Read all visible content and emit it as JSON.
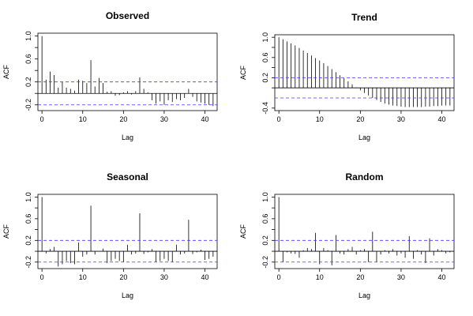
{
  "chart_data": [
    {
      "type": "bar",
      "title": "Observed",
      "xlabel": "Lag",
      "ylabel": "ACF",
      "xlim": [
        -1,
        43
      ],
      "ylim": [
        -0.3,
        1.05
      ],
      "xticks": [
        0,
        10,
        20,
        30,
        40
      ],
      "yticks": [
        -0.2,
        0.2,
        0.6,
        1.0
      ],
      "yticks_minor": [
        0.0,
        0.4,
        0.8
      ],
      "conf_limit": 0.2,
      "lags": [
        0,
        1,
        2,
        3,
        4,
        5,
        6,
        7,
        8,
        9,
        10,
        11,
        12,
        13,
        14,
        15,
        16,
        17,
        18,
        19,
        20,
        21,
        22,
        23,
        24,
        25,
        26,
        27,
        28,
        29,
        30,
        31,
        32,
        33,
        34,
        35,
        36,
        37,
        38,
        39,
        40,
        41,
        42
      ],
      "values": [
        1.0,
        0.24,
        0.38,
        0.32,
        0.1,
        0.2,
        0.1,
        0.08,
        0.05,
        0.24,
        0.22,
        0.18,
        0.58,
        0.12,
        0.27,
        0.18,
        0.03,
        0.04,
        -0.04,
        -0.03,
        0.02,
        0.04,
        -0.02,
        0.04,
        0.28,
        0.08,
        0.02,
        -0.12,
        -0.18,
        -0.14,
        -0.2,
        -0.12,
        -0.15,
        -0.1,
        -0.12,
        -0.08,
        0.08,
        -0.06,
        -0.14,
        -0.16,
        -0.18,
        -0.2,
        -0.22
      ]
    },
    {
      "type": "bar",
      "title": "Trend",
      "xlabel": "Lag",
      "ylabel": "ACF",
      "xlim": [
        -1,
        43
      ],
      "ylim": [
        -0.45,
        1.05
      ],
      "xticks": [
        0,
        10,
        20,
        30,
        40
      ],
      "yticks": [
        -0.4,
        0.2,
        0.6,
        1.0
      ],
      "yticks_minor": [
        0.0,
        0.4,
        0.8
      ],
      "conf_limit": 0.2,
      "lags": [
        0,
        1,
        2,
        3,
        4,
        5,
        6,
        7,
        8,
        9,
        10,
        11,
        12,
        13,
        14,
        15,
        16,
        17,
        18,
        19,
        20,
        21,
        22,
        23,
        24,
        25,
        26,
        27,
        28,
        29,
        30,
        31,
        32,
        33,
        34,
        35,
        36,
        37,
        38,
        39,
        40,
        41,
        42
      ],
      "values": [
        1.0,
        0.96,
        0.92,
        0.88,
        0.84,
        0.79,
        0.74,
        0.69,
        0.64,
        0.59,
        0.54,
        0.49,
        0.43,
        0.37,
        0.31,
        0.25,
        0.19,
        0.13,
        0.07,
        0.01,
        -0.05,
        -0.1,
        -0.15,
        -0.2,
        -0.24,
        -0.28,
        -0.31,
        -0.33,
        -0.35,
        -0.36,
        -0.37,
        -0.38,
        -0.38,
        -0.38,
        -0.38,
        -0.38,
        -0.37,
        -0.37,
        -0.36,
        -0.36,
        -0.35,
        -0.35,
        -0.35
      ]
    },
    {
      "type": "bar",
      "title": "Seasonal",
      "xlabel": "Lag",
      "ylabel": "ACF",
      "xlim": [
        -1,
        43
      ],
      "ylim": [
        -0.32,
        1.05
      ],
      "xticks": [
        0,
        10,
        20,
        30,
        40
      ],
      "yticks": [
        -0.2,
        0.2,
        0.6,
        1.0
      ],
      "yticks_minor": [
        0.0,
        0.4,
        0.8
      ],
      "conf_limit": 0.2,
      "lags": [
        0,
        1,
        2,
        3,
        4,
        5,
        6,
        7,
        8,
        9,
        10,
        11,
        12,
        13,
        14,
        15,
        16,
        17,
        18,
        19,
        20,
        21,
        22,
        23,
        24,
        25,
        26,
        27,
        28,
        29,
        30,
        31,
        32,
        33,
        34,
        35,
        36,
        37,
        38,
        39,
        40,
        41,
        42
      ],
      "values": [
        1.0,
        -0.04,
        0.04,
        0.08,
        -0.28,
        -0.24,
        -0.18,
        -0.22,
        -0.24,
        0.16,
        -0.1,
        -0.06,
        0.84,
        -0.06,
        0.0,
        0.05,
        -0.22,
        -0.18,
        -0.14,
        -0.18,
        -0.2,
        0.12,
        -0.06,
        -0.04,
        0.7,
        -0.05,
        -0.02,
        0.04,
        -0.2,
        -0.18,
        -0.14,
        -0.18,
        -0.2,
        0.12,
        -0.06,
        -0.04,
        0.58,
        -0.05,
        -0.02,
        0.03,
        -0.16,
        -0.14,
        -0.1
      ]
    },
    {
      "type": "bar",
      "title": "Random",
      "xlabel": "Lag",
      "ylabel": "ACF",
      "xlim": [
        -1,
        43
      ],
      "ylim": [
        -0.32,
        1.05
      ],
      "xticks": [
        0,
        10,
        20,
        30,
        40
      ],
      "yticks": [
        -0.2,
        0.2,
        0.6,
        1.0
      ],
      "yticks_minor": [
        0.0,
        0.4,
        0.8
      ],
      "conf_limit": 0.2,
      "lags": [
        0,
        1,
        2,
        3,
        4,
        5,
        6,
        7,
        8,
        9,
        10,
        11,
        12,
        13,
        14,
        15,
        16,
        17,
        18,
        19,
        20,
        21,
        22,
        23,
        24,
        25,
        26,
        27,
        28,
        29,
        30,
        31,
        32,
        33,
        34,
        35,
        36,
        37,
        38,
        39,
        40,
        41,
        42
      ],
      "values": [
        1.0,
        -0.2,
        -0.02,
        -0.04,
        -0.05,
        -0.12,
        0.02,
        0.06,
        0.04,
        0.34,
        -0.24,
        0.06,
        0.02,
        -0.26,
        0.3,
        -0.04,
        -0.06,
        0.04,
        0.08,
        -0.06,
        0.02,
        0.04,
        -0.2,
        0.36,
        -0.2,
        -0.06,
        0.02,
        -0.04,
        0.04,
        -0.08,
        -0.04,
        -0.12,
        0.28,
        -0.14,
        0.02,
        -0.06,
        -0.22,
        0.24,
        -0.08,
        0.04,
        0.02,
        -0.04,
        -0.02
      ]
    }
  ]
}
